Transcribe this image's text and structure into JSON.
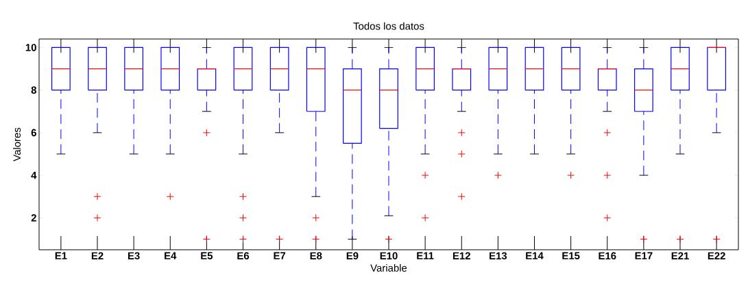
{
  "chart_data": {
    "type": "box",
    "title": "Todos los datos",
    "xlabel": "Variable",
    "ylabel": "Valores",
    "categories": [
      "E1",
      "E2",
      "E3",
      "E4",
      "E5",
      "E6",
      "E7",
      "E8",
      "E9",
      "E10",
      "E11",
      "E12",
      "E13",
      "E14",
      "E15",
      "E16",
      "E17",
      "E21",
      "E22"
    ],
    "ylim": [
      0.5,
      10.4
    ],
    "yticks": [
      2,
      4,
      6,
      8,
      10
    ],
    "color": "#0000ff",
    "boxes": [
      {
        "low": 5,
        "q1": 8,
        "median": 9,
        "q3": 10,
        "high": 10
      },
      {
        "low": 6,
        "q1": 8,
        "median": 9,
        "q3": 10,
        "high": 10,
        "outliers": [
          3,
          2
        ]
      },
      {
        "low": 5,
        "q1": 8,
        "median": 9,
        "q3": 10,
        "high": 10
      },
      {
        "low": 5,
        "q1": 8,
        "median": 9,
        "q3": 10,
        "high": 10,
        "outliers": [
          3
        ]
      },
      {
        "low": 7,
        "q1": 8,
        "median": 9,
        "q3": 9,
        "high": 10,
        "outliers": [
          6,
          1
        ]
      },
      {
        "low": 5,
        "q1": 8,
        "median": 9,
        "q3": 10,
        "high": 10,
        "outliers": [
          3,
          2,
          1
        ]
      },
      {
        "low": 6,
        "q1": 8,
        "median": 9,
        "q3": 10,
        "high": 10,
        "outliers": [
          1
        ]
      },
      {
        "low": 3,
        "q1": 7,
        "median": 9,
        "q3": 10,
        "high": 10,
        "outliers": [
          2,
          1
        ]
      },
      {
        "low": 1,
        "q1": 5.5,
        "median": 8,
        "q3": 9,
        "high": 10
      },
      {
        "low": 2.1,
        "q1": 6.2,
        "median": 8,
        "q3": 9,
        "high": 10,
        "outliers": [
          1
        ]
      },
      {
        "low": 5,
        "q1": 8,
        "median": 9,
        "q3": 10,
        "high": 10,
        "outliers": [
          4,
          2
        ]
      },
      {
        "low": 7,
        "q1": 8,
        "median": 9,
        "q3": 9,
        "high": 10,
        "outliers": [
          6,
          5,
          3
        ]
      },
      {
        "low": 5,
        "q1": 8,
        "median": 9,
        "q3": 10,
        "high": 10,
        "outliers": [
          4
        ]
      },
      {
        "low": 5,
        "q1": 8,
        "median": 9,
        "q3": 10,
        "high": 10
      },
      {
        "low": 5,
        "q1": 8,
        "median": 9,
        "q3": 10,
        "high": 10,
        "outliers": [
          4
        ]
      },
      {
        "low": 7,
        "q1": 8,
        "median": 9,
        "q3": 9,
        "high": 10,
        "outliers": [
          6,
          4,
          2
        ]
      },
      {
        "low": 4,
        "q1": 7,
        "median": 8,
        "q3": 9,
        "high": 10,
        "outliers": [
          1
        ]
      },
      {
        "low": 5,
        "q1": 8,
        "median": 9,
        "q3": 10,
        "high": 10,
        "outliers": [
          1
        ]
      },
      {
        "low": 6,
        "q1": 8,
        "median": 10,
        "q3": 10,
        "high": 10,
        "outliers": [
          1
        ]
      }
    ]
  }
}
